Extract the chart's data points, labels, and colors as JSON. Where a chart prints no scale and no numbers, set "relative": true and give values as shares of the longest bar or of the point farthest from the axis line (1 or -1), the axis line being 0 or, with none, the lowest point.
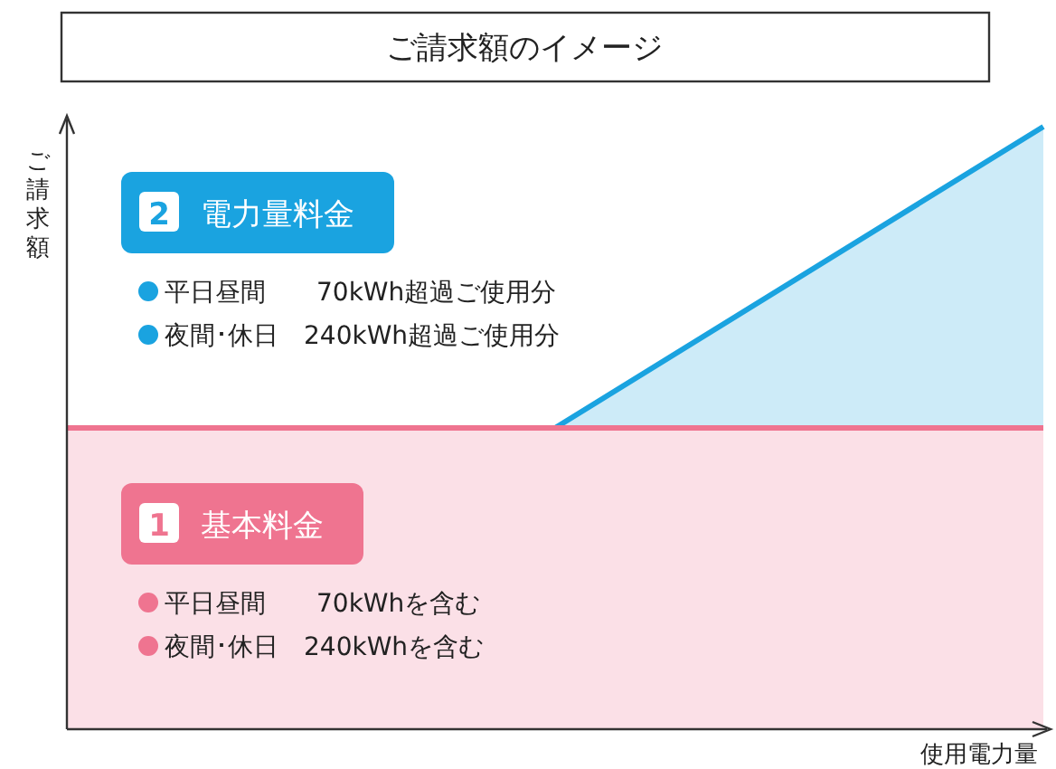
{
  "chart_data": {
    "type": "area",
    "title": "ご請求額のイメージ",
    "xlabel": "使用電力量",
    "ylabel": "ご請求額",
    "relative": true,
    "stacked": true,
    "categories": [
      null,
      null,
      null
    ],
    "series": [
      {
        "name": "基本料金",
        "color": "#ef7490",
        "values": [
          0.5,
          0.5,
          0.5
        ]
      },
      {
        "name": "電力量料金",
        "color": "#1aa3e0",
        "values": [
          0,
          0,
          0.5
        ]
      }
    ],
    "annotations": [
      "1",
      "平日昼間　　70kWhを含む",
      "夜間･休日　240kWhを含む",
      "2",
      "平日昼間　　70kWh超過ご使用分",
      "夜間･休日　240kWh超過ご使用分"
    ],
    "line_style": "solid"
  }
}
